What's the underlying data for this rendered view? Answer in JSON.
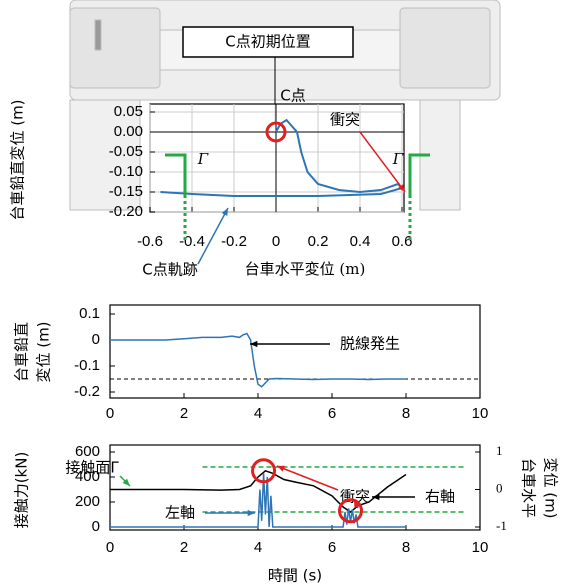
{
  "chart_data": [
    {
      "type": "line",
      "ylabel": "台車鉛直変位 (m)",
      "xlabel": "台車水平変位 (m)",
      "xlim": [
        -0.6,
        0.6
      ],
      "xticks": [
        -0.6,
        -0.4,
        -0.2,
        0,
        0.2,
        0.4,
        0.6
      ],
      "ylim": [
        -0.2,
        0.07
      ],
      "yticks": [
        0.05,
        {
          "value": 0,
          "label": "0.00"
        },
        -0.05,
        {
          "value": -0.1,
          "label": "-0.10"
        },
        -0.15,
        {
          "value": -0.2,
          "label": "-0.20"
        }
      ],
      "grid": true,
      "series": [
        {
          "name": "C点軌跡",
          "color": "#2e75b6",
          "x": [
            0,
            0.02,
            0.05,
            0.1,
            0.12,
            0.15,
            0.2,
            0.3,
            0.4,
            0.5,
            0.58,
            0.6,
            0.5,
            0.2,
            0,
            -0.2,
            -0.4,
            -0.55
          ],
          "values": [
            0,
            0.02,
            0.03,
            0.0,
            -0.05,
            -0.1,
            -0.13,
            -0.145,
            -0.15,
            -0.145,
            -0.13,
            -0.14,
            -0.155,
            -0.16,
            -0.16,
            -0.16,
            -0.155,
            -0.15
          ]
        }
      ],
      "annotations": [
        {
          "text": "C点初期位置"
        },
        {
          "text": "C点",
          "color": "#e02020"
        },
        {
          "text": "衝突",
          "color": "#e02020"
        },
        {
          "text": "Γ",
          "color": "#22aa44"
        },
        {
          "text": "Γ",
          "color": "#22aa44"
        }
      ]
    },
    {
      "type": "line",
      "ylabel": [
        "台車鉛直",
        "変位 (m)"
      ],
      "xlim": [
        0,
        10
      ],
      "xticks": [
        0,
        2,
        4,
        6,
        8,
        10
      ],
      "ylim": [
        -0.2,
        0.1
      ],
      "yticks": [
        0.1,
        0,
        -0.1,
        -0.2
      ],
      "series": [
        {
          "color": "#2e75b6",
          "x": [
            0,
            0.5,
            1,
            1.5,
            2,
            2.5,
            3,
            3.3,
            3.5,
            3.6,
            3.7,
            3.8,
            3.9,
            4.0,
            4.1,
            4.3,
            4.5,
            5,
            5.5,
            6,
            6.5,
            7,
            7.5,
            8
          ],
          "values": [
            0,
            0,
            0,
            0,
            0.005,
            0.01,
            0.01,
            0.015,
            0.01,
            0.02,
            0.025,
            0,
            -0.1,
            -0.17,
            -0.18,
            -0.15,
            -0.148,
            -0.15,
            -0.152,
            -0.15,
            -0.15,
            -0.152,
            -0.15,
            -0.15
          ]
        }
      ],
      "hline": {
        "value": -0.15,
        "color": "#000000"
      },
      "annotations": [
        {
          "text": "脱線発生"
        }
      ]
    },
    {
      "type": "line",
      "ylabel": "接触力(kN)",
      "y2label": [
        "台車水平",
        "変位 (m)"
      ],
      "xlabel": "時間 (s)",
      "xlim": [
        0,
        10
      ],
      "xticks": [
        0,
        2,
        4,
        6,
        8,
        10
      ],
      "ylim": [
        0,
        600
      ],
      "yticks": [
        0,
        200,
        400,
        600
      ],
      "y2lim": [
        -1,
        1
      ],
      "y2ticks": [
        -1,
        0,
        1
      ],
      "series": [
        {
          "name": "右軸",
          "color": "#000000",
          "x": [
            0,
            1,
            2,
            3,
            3.5,
            3.8,
            4.0,
            4.2,
            4.4,
            4.7,
            5.0,
            5.5,
            6.0,
            6.3,
            6.5,
            6.7,
            7.0,
            7.5,
            8.0
          ],
          "values": [
            300,
            300,
            300,
            295,
            300,
            330,
            400,
            450,
            430,
            380,
            360,
            330,
            250,
            160,
            120,
            170,
            200,
            320,
            420
          ]
        },
        {
          "name": "左軸",
          "color": "#2e75b6",
          "x": [
            0,
            4.0,
            4.05,
            4.1,
            4.15,
            4.2,
            4.25,
            4.3,
            4.35,
            4.4,
            6.3,
            6.35,
            6.4,
            6.45,
            6.5,
            6.55,
            6.6,
            6.65,
            6.7,
            8.0
          ],
          "values": [
            0,
            0,
            300,
            50,
            430,
            100,
            400,
            0,
            250,
            0,
            0,
            120,
            20,
            150,
            40,
            140,
            30,
            100,
            0,
            0
          ]
        }
      ],
      "hlines": [
        {
          "value": 0.6,
          "axis": "y2"
        },
        {
          "value": -0.6,
          "axis": "y2"
        }
      ],
      "hline_label": "接触面Γ",
      "hline_color": "#22aa44",
      "annotations": [
        {
          "text": "衝突",
          "color": "#e02020"
        }
      ]
    }
  ]
}
